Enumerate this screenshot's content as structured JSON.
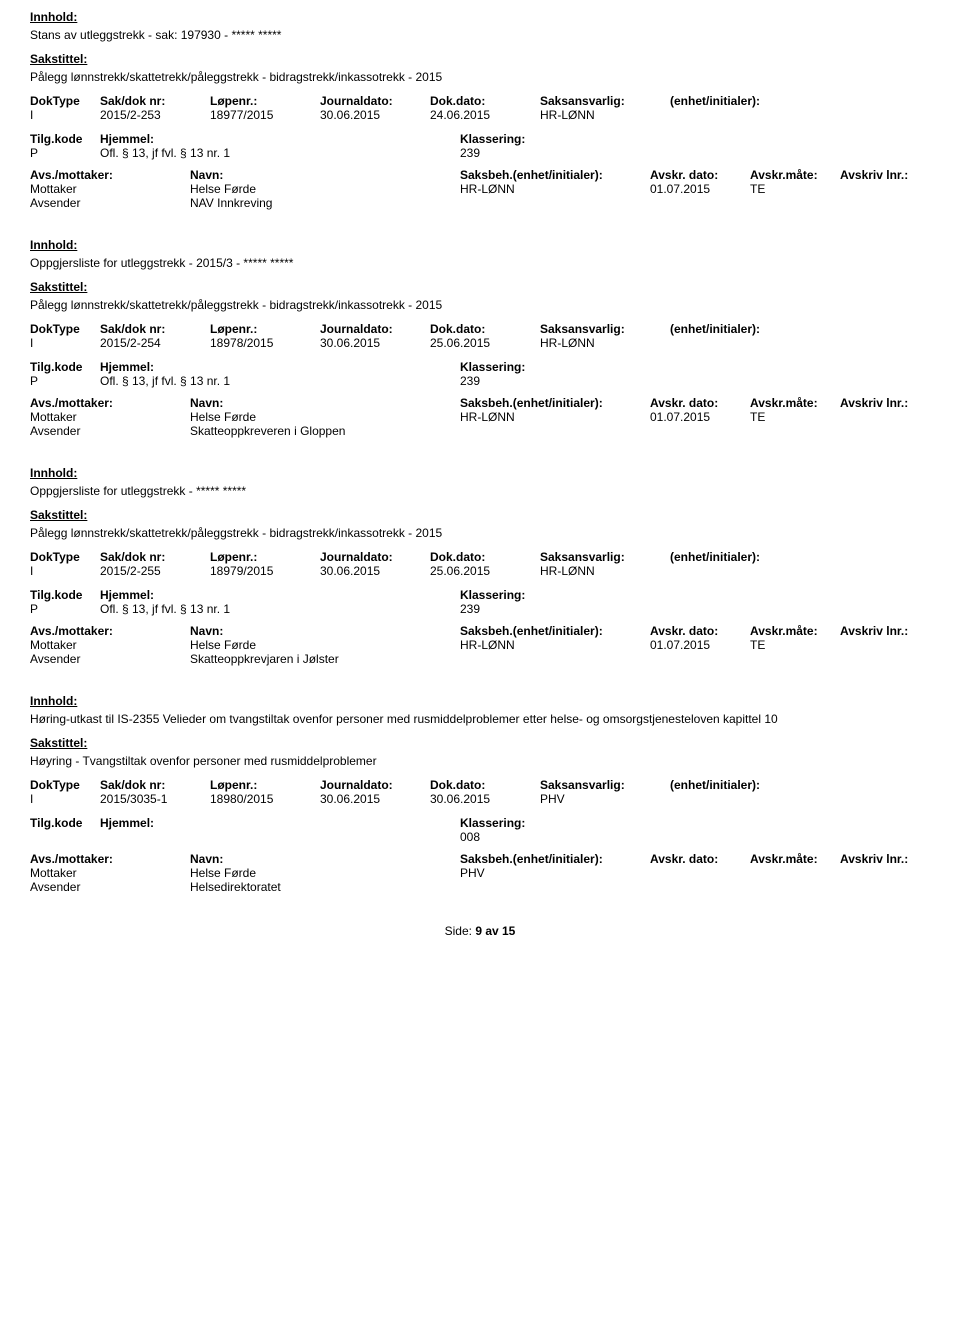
{
  "labels": {
    "innhold": "Innhold:",
    "sakstittel": "Sakstittel:",
    "doktype": "DokType",
    "saknr": "Sak/dok nr:",
    "lopenr": "Løpenr.:",
    "journaldato": "Journaldato:",
    "dokdato": "Dok.dato:",
    "saksansvarlig": "Saksansvarlig:",
    "enhet": "(enhet/initialer):",
    "tilgkode": "Tilg.kode",
    "hjemmel": "Hjemmel:",
    "klassering": "Klassering:",
    "avsmottaker": "Avs./mottaker:",
    "navn": "Navn:",
    "saksbeh": "Saksbeh.(enhet/initialer):",
    "avskrdato": "Avskr. dato:",
    "avskrmate": "Avskr.måte:",
    "avskrivlnr": "Avskriv lnr.:",
    "mottaker": "Mottaker",
    "avsender": "Avsender"
  },
  "entries": [
    {
      "innhold": "Stans av utleggstrekk - sak: 197930 - ***** *****",
      "sakstittel": "Pålegg lønnstrekk/skattetrekk/påleggstrekk - bidragstrekk/inkassotrekk - 2015",
      "doktype": "I",
      "saknr": "2015/2-253",
      "lopenr": "18977/2015",
      "journaldato": "30.06.2015",
      "dokdato": "24.06.2015",
      "saksansvarlig": "HR-LØNN",
      "enhet": "",
      "tilgkode": "P",
      "hjemmel": "Ofl. § 13, jf fvl. § 13 nr. 1",
      "klassering": "239",
      "parties": [
        {
          "role": "Mottaker",
          "navn": "Helse Førde",
          "saksbeh": "HR-LØNN",
          "avskrdato": "01.07.2015",
          "avskrmate": "TE",
          "avskrivlnr": ""
        },
        {
          "role": "Avsender",
          "navn": "NAV Innkreving",
          "saksbeh": "",
          "avskrdato": "",
          "avskrmate": "",
          "avskrivlnr": ""
        }
      ]
    },
    {
      "innhold": "Oppgjersliste for utleggstrekk - 2015/3 - ***** *****",
      "sakstittel": "Pålegg lønnstrekk/skattetrekk/påleggstrekk - bidragstrekk/inkassotrekk - 2015",
      "doktype": "I",
      "saknr": "2015/2-254",
      "lopenr": "18978/2015",
      "journaldato": "30.06.2015",
      "dokdato": "25.06.2015",
      "saksansvarlig": "HR-LØNN",
      "enhet": "",
      "tilgkode": "P",
      "hjemmel": "Ofl. § 13, jf fvl. § 13 nr. 1",
      "klassering": "239",
      "parties": [
        {
          "role": "Mottaker",
          "navn": "Helse Førde",
          "saksbeh": "HR-LØNN",
          "avskrdato": "01.07.2015",
          "avskrmate": "TE",
          "avskrivlnr": ""
        },
        {
          "role": "Avsender",
          "navn": "Skatteoppkreveren i Gloppen",
          "saksbeh": "",
          "avskrdato": "",
          "avskrmate": "",
          "avskrivlnr": ""
        }
      ]
    },
    {
      "innhold": "Oppgjersliste for utleggstrekk - ***** *****",
      "sakstittel": "Pålegg lønnstrekk/skattetrekk/påleggstrekk - bidragstrekk/inkassotrekk - 2015",
      "doktype": "I",
      "saknr": "2015/2-255",
      "lopenr": "18979/2015",
      "journaldato": "30.06.2015",
      "dokdato": "25.06.2015",
      "saksansvarlig": "HR-LØNN",
      "enhet": "",
      "tilgkode": "P",
      "hjemmel": "Ofl. § 13, jf fvl. § 13 nr. 1",
      "klassering": "239",
      "parties": [
        {
          "role": "Mottaker",
          "navn": "Helse Førde",
          "saksbeh": "HR-LØNN",
          "avskrdato": "01.07.2015",
          "avskrmate": "TE",
          "avskrivlnr": ""
        },
        {
          "role": "Avsender",
          "navn": "Skatteoppkrevjaren i Jølster",
          "saksbeh": "",
          "avskrdato": "",
          "avskrmate": "",
          "avskrivlnr": ""
        }
      ]
    },
    {
      "innhold": "Høring-utkast til IS-2355 Velieder om tvangstiltak ovenfor personer med rusmiddelproblemer etter helse- og omsorgstjenesteloven kapittel 10",
      "sakstittel": "Høyring - Tvangstiltak ovenfor personer med rusmiddelproblemer",
      "doktype": "I",
      "saknr": "2015/3035-1",
      "lopenr": "18980/2015",
      "journaldato": "30.06.2015",
      "dokdato": "30.06.2015",
      "saksansvarlig": "PHV",
      "enhet": "",
      "tilgkode": "",
      "hjemmel": "",
      "klassering": "008",
      "parties": [
        {
          "role": "Mottaker",
          "navn": "Helse Førde",
          "saksbeh": "PHV",
          "avskrdato": "",
          "avskrmate": "",
          "avskrivlnr": ""
        },
        {
          "role": "Avsender",
          "navn": "Helsedirektoratet",
          "saksbeh": "",
          "avskrdato": "",
          "avskrmate": "",
          "avskrivlnr": ""
        }
      ]
    }
  ],
  "footer": {
    "label": "Side: ",
    "page": "9 av 15"
  }
}
